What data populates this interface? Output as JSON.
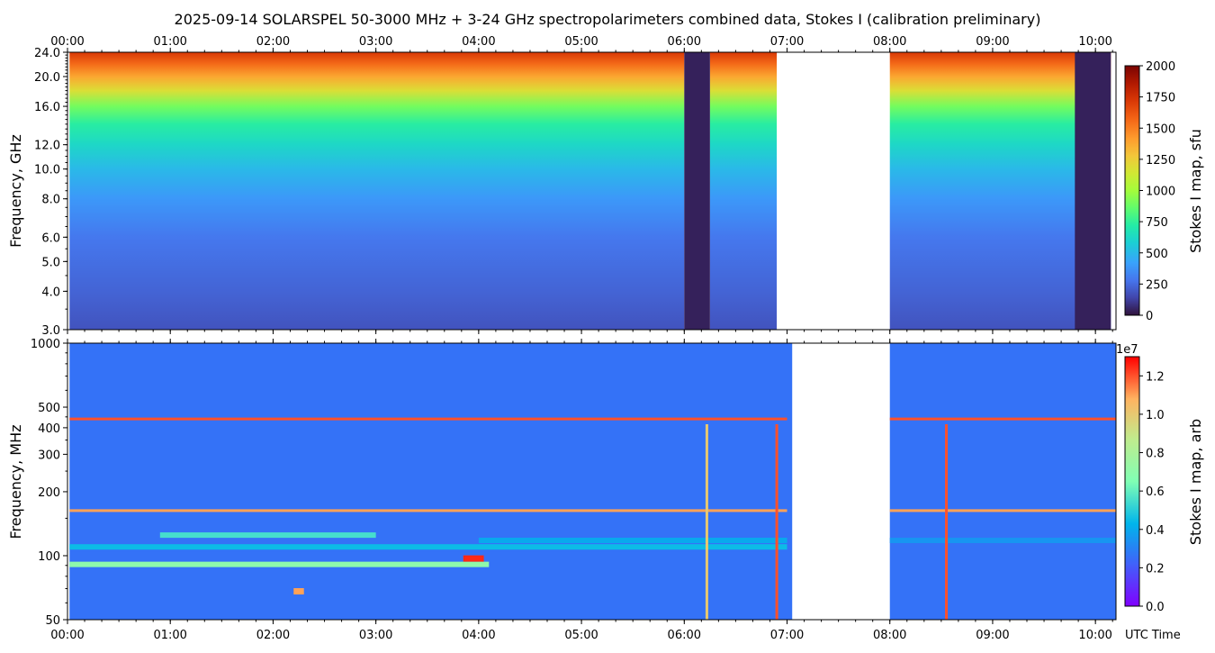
{
  "title": "2025-09-14  SOLARSPEL  50-3000 MHz  +  3-24 GHz  spectropolarimeters combined data,  Stokes I  (calibration preliminary)",
  "x_axis": {
    "tick_labels": [
      "00:00",
      "01:00",
      "02:00",
      "03:00",
      "04:00",
      "05:00",
      "06:00",
      "07:00",
      "08:00",
      "09:00",
      "10:00"
    ],
    "label": "UTC Time"
  },
  "chart_data": [
    {
      "type": "heatmap",
      "panel": "top",
      "ylabel": "Frequency, GHz",
      "y_scale": "log",
      "ylim": [
        3.0,
        24.0
      ],
      "y_tick_labels": [
        "24.0",
        "20.0",
        "16.0",
        "12.0",
        "10.0",
        "8.0",
        "6.0",
        "5.0",
        "4.0",
        "3.0"
      ],
      "colorbar": {
        "label": "Stokes I map, sfu",
        "range": [
          0,
          2000
        ],
        "tick_labels": [
          "2000",
          "1750",
          "1500",
          "1250",
          "1000",
          "750",
          "500",
          "250",
          "0"
        ],
        "colormap": "turbo"
      },
      "xlim_hours": [
        0.0,
        10.2
      ],
      "data_segments_hours": [
        [
          0.02,
          6.0
        ],
        [
          6.25,
          6.9
        ],
        [
          8.0,
          10.15
        ]
      ],
      "dropout_segments_hours": [
        [
          6.0,
          6.25
        ],
        [
          9.8,
          10.15
        ]
      ],
      "no_data_hours": [
        [
          6.92,
          8.0
        ]
      ],
      "frequency_profile": {
        "freq_ghz": [
          3.0,
          4.0,
          6.0,
          8.0,
          10.0,
          12.0,
          14.0,
          16.0,
          18.0,
          20.0,
          22.0,
          24.0
        ],
        "stokes_i_sfu": [
          180,
          230,
          290,
          390,
          500,
          620,
          730,
          900,
          1180,
          1380,
          1560,
          1720
        ]
      }
    },
    {
      "type": "heatmap",
      "panel": "bottom",
      "ylabel": "Frequency, MHz",
      "y_scale": "log",
      "ylim": [
        50,
        1000
      ],
      "y_tick_labels": [
        "1000",
        "500",
        "400",
        "300",
        "200",
        "100",
        "50"
      ],
      "colorbar": {
        "label": "Stokes I map, arb",
        "exponent_label": "1e7",
        "range": [
          0.0,
          1.3
        ],
        "tick_labels": [
          "1.2",
          "1.0",
          "0.8",
          "0.6",
          "0.4",
          "0.2",
          "0.0"
        ],
        "colormap": "rainbow"
      },
      "xlim_hours": [
        0.0,
        10.2
      ],
      "data_segments_hours": [
        [
          0.02,
          7.05
        ],
        [
          8.0,
          10.2
        ]
      ],
      "no_data_hours": [
        [
          7.05,
          8.0
        ]
      ],
      "features": [
        {
          "kind": "band",
          "freq_mhz": 91,
          "t_start": 0.02,
          "t_end": 4.1,
          "level": 0.7
        },
        {
          "kind": "band",
          "freq_mhz": 110,
          "t_start": 0.02,
          "t_end": 7.0,
          "level": 0.45
        },
        {
          "kind": "band",
          "freq_mhz": 125,
          "t_start": 0.9,
          "t_end": 3.0,
          "level": 0.55
        },
        {
          "kind": "band",
          "freq_mhz": 118,
          "t_start": 4.0,
          "t_end": 7.0,
          "level": 0.4
        },
        {
          "kind": "band",
          "freq_mhz": 118,
          "t_start": 8.0,
          "t_end": 10.2,
          "level": 0.35
        },
        {
          "kind": "line",
          "freq_mhz": 163,
          "t_start": 0.02,
          "t_end": 7.0,
          "level": 1.1
        },
        {
          "kind": "line",
          "freq_mhz": 163,
          "t_start": 8.0,
          "t_end": 10.2,
          "level": 1.1
        },
        {
          "kind": "line",
          "freq_mhz": 440,
          "t_start": 0.02,
          "t_end": 7.0,
          "level": 1.2
        },
        {
          "kind": "line",
          "freq_mhz": 440,
          "t_start": 8.0,
          "t_end": 10.2,
          "level": 1.2
        },
        {
          "kind": "burst",
          "freq_mhz": 97,
          "t_start": 3.85,
          "t_end": 4.05,
          "level": 1.25
        },
        {
          "kind": "burst",
          "freq_mhz": 68,
          "t_start": 2.2,
          "t_end": 2.3,
          "level": 1.1
        },
        {
          "kind": "spike",
          "t": 6.9,
          "level": 1.2
        },
        {
          "kind": "spike",
          "t": 8.55,
          "level": 1.2
        },
        {
          "kind": "spike",
          "t": 6.22,
          "level": 1.0
        }
      ]
    }
  ]
}
